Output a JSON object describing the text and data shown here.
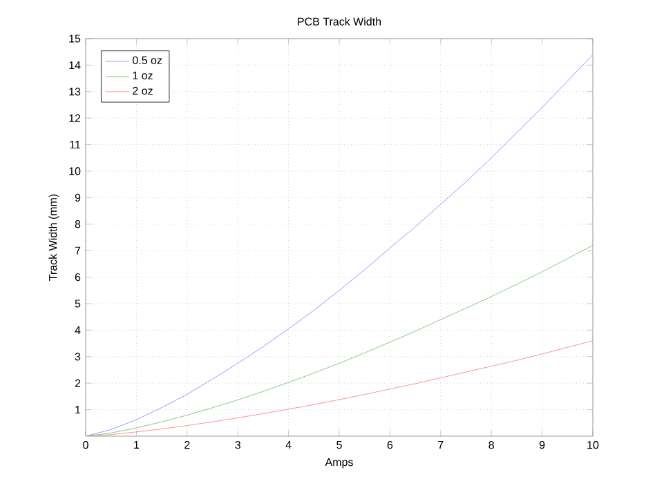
{
  "chart_data": {
    "type": "line",
    "title": "PCB Track Width",
    "xlabel": "Amps",
    "ylabel": "Track Width (mm)",
    "x": [
      0,
      0.5,
      1,
      1.5,
      2,
      2.5,
      3,
      3.5,
      4,
      4.5,
      5,
      5.5,
      6,
      6.5,
      7,
      7.5,
      8,
      8.5,
      9,
      9.5,
      10
    ],
    "series": [
      {
        "name": "0.5 oz",
        "color": "#7f7fff",
        "values": [
          0,
          0.25,
          0.62,
          1.08,
          1.58,
          2.15,
          2.75,
          3.38,
          4.05,
          4.75,
          5.5,
          6.28,
          7.1,
          7.9,
          8.75,
          9.6,
          10.5,
          11.45,
          12.4,
          13.4,
          14.4
        ]
      },
      {
        "name": "1 oz",
        "color": "#66bb66",
        "values": [
          0,
          0.12,
          0.31,
          0.54,
          0.79,
          1.07,
          1.37,
          1.69,
          2.03,
          2.38,
          2.75,
          3.14,
          3.55,
          3.96,
          4.4,
          4.83,
          5.27,
          5.73,
          6.2,
          6.7,
          7.2
        ]
      },
      {
        "name": "2 oz",
        "color": "#ff7777",
        "values": [
          0,
          0.06,
          0.16,
          0.27,
          0.4,
          0.54,
          0.69,
          0.85,
          1.02,
          1.19,
          1.38,
          1.57,
          1.78,
          1.98,
          2.2,
          2.42,
          2.64,
          2.86,
          3.1,
          3.35,
          3.6
        ]
      }
    ],
    "xlim": [
      0,
      10
    ],
    "ylim": [
      0,
      15
    ],
    "xticks": [
      0,
      1,
      2,
      3,
      4,
      5,
      6,
      7,
      8,
      9,
      10
    ],
    "yticks": [
      1,
      2,
      3,
      4,
      5,
      6,
      7,
      8,
      9,
      10,
      11,
      12,
      13,
      14,
      15
    ],
    "grid": true,
    "legend": "top left",
    "line_style": "solid",
    "marker": "none"
  }
}
